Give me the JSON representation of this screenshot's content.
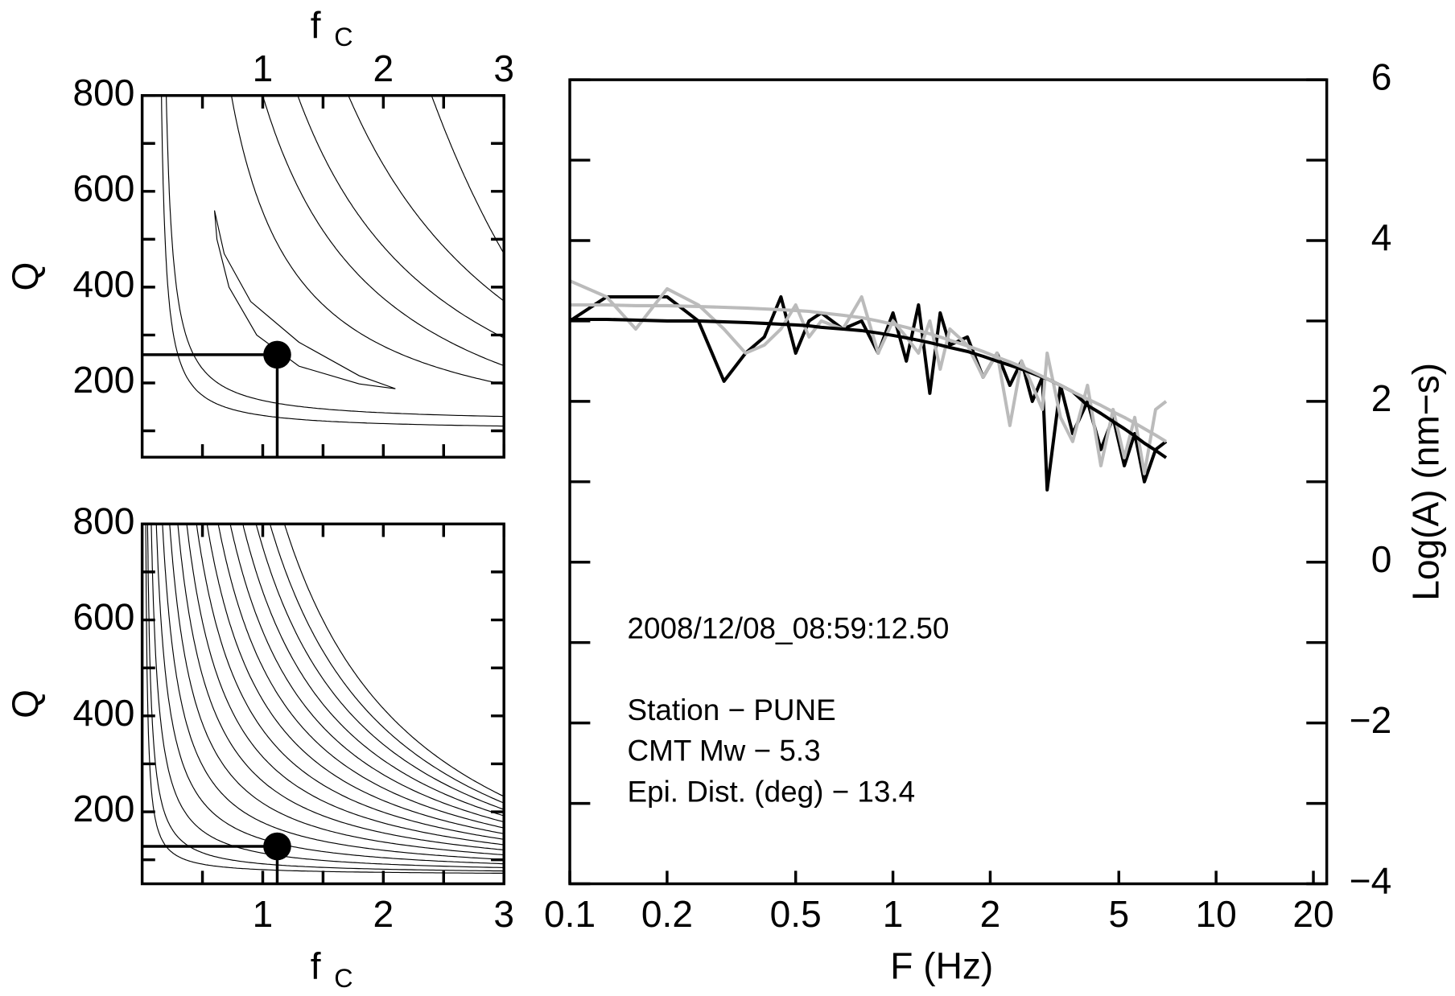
{
  "chart_data": [
    {
      "type": "contour",
      "x_label": "f",
      "x_label_sub": "C",
      "x_axis": "top",
      "y_label": "Q",
      "xlim": [
        0,
        3
      ],
      "xticks": [
        1,
        2,
        3
      ],
      "xminor": [
        0.5,
        1.5,
        2.5
      ],
      "ylim": [
        45,
        800
      ],
      "yticks": [
        200,
        400,
        600,
        800
      ],
      "yminor": [
        100,
        300,
        500,
        700
      ],
      "point": {
        "x": 1.12,
        "y": 259
      }
    },
    {
      "type": "contour",
      "x_label": "f",
      "x_label_sub": "C",
      "x_axis": "bottom",
      "y_label": "Q",
      "xlim": [
        0,
        3
      ],
      "xticks": [
        1,
        2,
        3
      ],
      "xminor": [
        0.5,
        1.5,
        2.5
      ],
      "ylim": [
        50,
        800
      ],
      "yticks": [
        200,
        400,
        600,
        800
      ],
      "yminor": [
        100,
        300,
        500,
        700
      ],
      "point": {
        "x": 1.12,
        "y": 128
      }
    },
    {
      "type": "line",
      "x_label": "F  (Hz)",
      "y_label": "Log(A)  (nm−s)",
      "log_x": true,
      "xlim": [
        0.1,
        22
      ],
      "xticks": [
        0.1,
        0.2,
        0.5,
        1,
        2,
        5,
        10,
        20
      ],
      "ylim": [
        -4,
        6
      ],
      "yticks": [
        {
          "value": -4,
          "label": "−4"
        },
        {
          "value": -2,
          "label": "−2"
        },
        0,
        2,
        4,
        6
      ],
      "yminor": [
        -3,
        -1,
        1,
        3,
        5
      ],
      "annotations": [
        "2008/12/08_08:59:12.50",
        "Station − PUNE",
        "CMT Mw −  5.3",
        "Epi. Dist. (deg) −  13.4"
      ],
      "x": [
        0.1,
        0.13,
        0.16,
        0.2,
        0.25,
        0.3,
        0.35,
        0.4,
        0.45,
        0.5,
        0.55,
        0.6,
        0.7,
        0.8,
        0.9,
        1.0,
        1.1,
        1.2,
        1.3,
        1.4,
        1.5,
        1.7,
        1.9,
        2.1,
        2.3,
        2.5,
        2.7,
        2.9,
        3.0,
        3.3,
        3.6,
        4.0,
        4.4,
        4.8,
        5.2,
        5.6,
        6.0,
        6.5,
        7.0
      ],
      "series": [
        {
          "color": "#000000",
          "values": [
            3.0,
            3.3,
            3.3,
            3.3,
            3.0,
            2.25,
            2.6,
            2.8,
            3.3,
            2.6,
            3.0,
            3.1,
            2.9,
            3.0,
            2.6,
            3.1,
            2.5,
            3.2,
            2.1,
            3.1,
            2.7,
            2.8,
            2.3,
            2.6,
            2.2,
            2.5,
            2.0,
            2.3,
            0.9,
            2.2,
            1.6,
            2.0,
            1.4,
            1.8,
            1.2,
            1.6,
            1.0,
            1.4,
            1.5
          ]
        },
        {
          "color": "#bbbbbb",
          "values": [
            3.5,
            3.3,
            2.9,
            3.4,
            3.2,
            2.9,
            2.6,
            2.7,
            2.9,
            3.2,
            2.8,
            3.0,
            2.9,
            3.3,
            2.6,
            3.0,
            2.8,
            2.6,
            3.0,
            2.4,
            2.9,
            2.7,
            2.3,
            2.6,
            1.7,
            2.5,
            2.2,
            1.9,
            2.6,
            1.8,
            1.5,
            2.2,
            1.2,
            1.9,
            1.3,
            1.8,
            1.1,
            1.9,
            2.0
          ]
        },
        {
          "color": "#000000",
          "values": [
            3.02,
            3.02,
            3.01,
            3.0,
            3.0,
            2.99,
            2.98,
            2.97,
            2.96,
            2.95,
            2.94,
            2.92,
            2.9,
            2.88,
            2.85,
            2.82,
            2.79,
            2.76,
            2.73,
            2.7,
            2.67,
            2.62,
            2.56,
            2.5,
            2.45,
            2.4,
            2.35,
            2.3,
            2.28,
            2.2,
            2.12,
            1.95,
            1.85,
            1.75,
            1.66,
            1.57,
            1.48,
            1.39,
            1.3
          ]
        },
        {
          "color": "#bbbbbb",
          "values": [
            3.2,
            3.2,
            3.19,
            3.19,
            3.18,
            3.17,
            3.16,
            3.15,
            3.14,
            3.13,
            3.12,
            3.1,
            3.07,
            3.04,
            3.0,
            2.96,
            2.92,
            2.88,
            2.84,
            2.8,
            2.76,
            2.69,
            2.62,
            2.55,
            2.49,
            2.43,
            2.37,
            2.31,
            2.28,
            2.2,
            2.12,
            2.03,
            1.95,
            1.87,
            1.8,
            1.73,
            1.66,
            1.58,
            1.5
          ]
        }
      ]
    }
  ]
}
